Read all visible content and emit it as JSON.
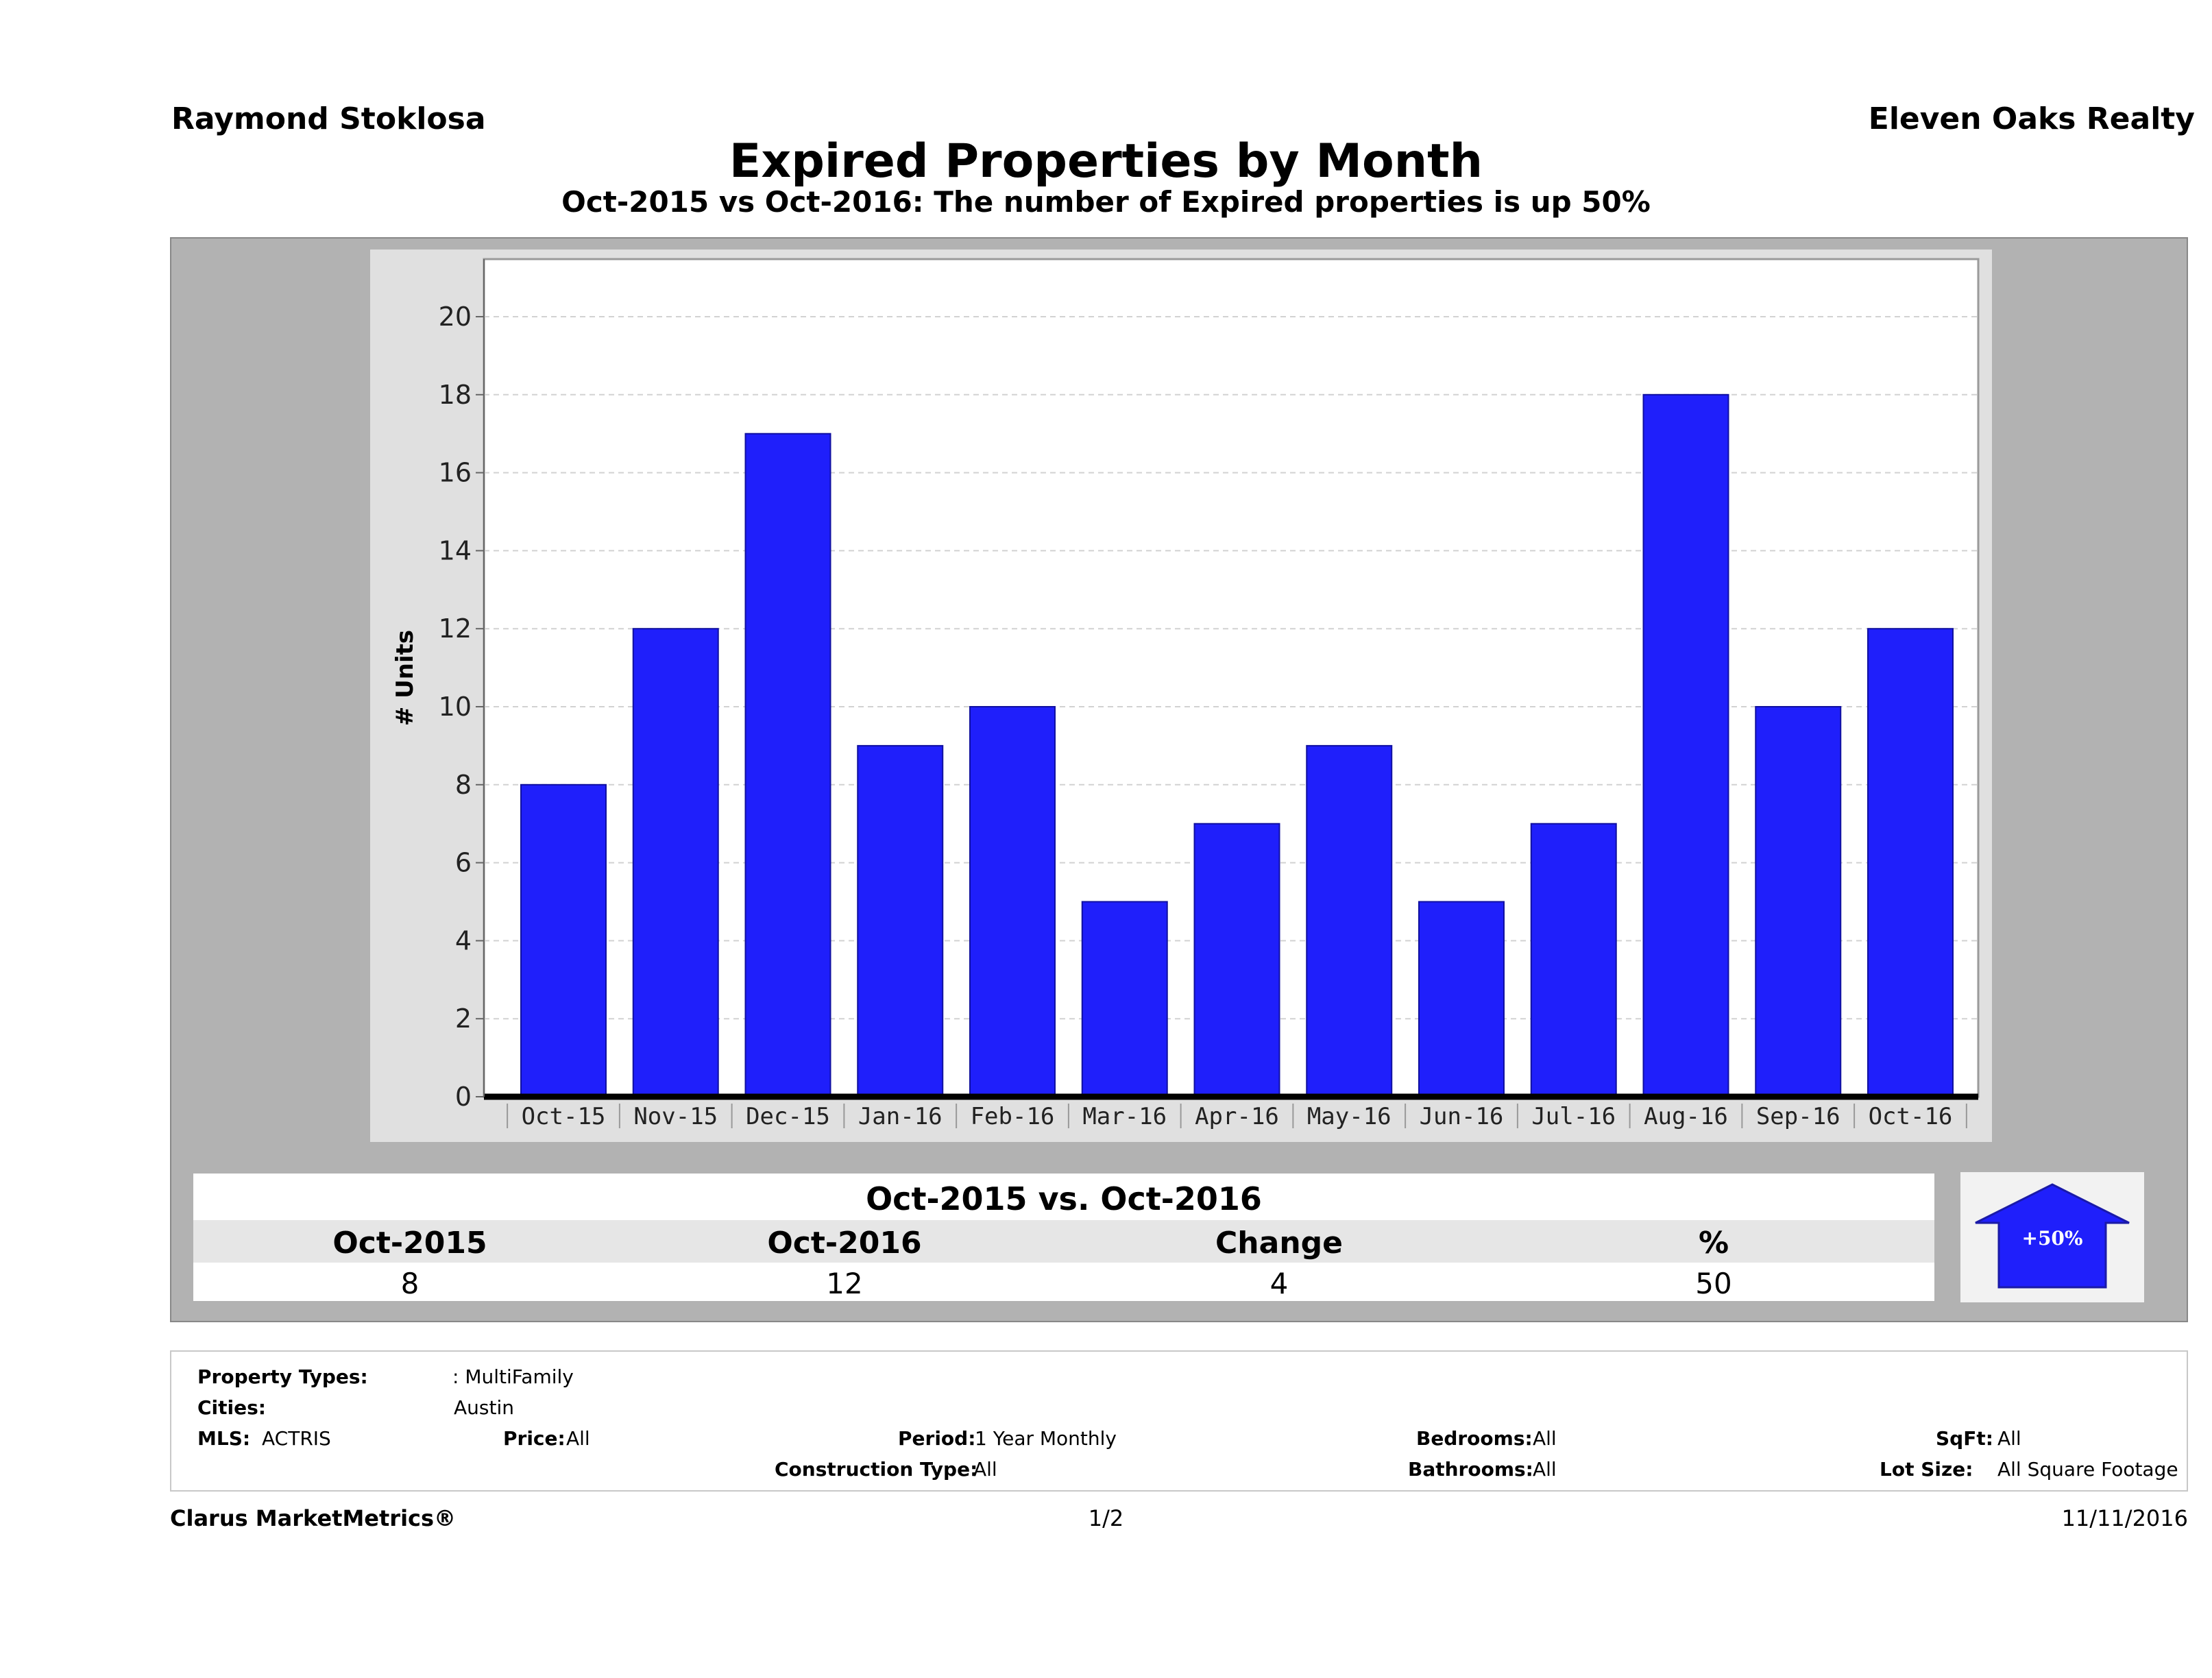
{
  "header": {
    "agent": "Raymond Stoklosa",
    "brokerage": "Eleven Oaks Realty",
    "title": "Expired Properties by Month",
    "subtitle": "Oct-2015 vs Oct-2016: The number of Expired  properties is up 50%"
  },
  "chart_data": {
    "type": "bar",
    "categories": [
      "Oct-15",
      "Nov-15",
      "Dec-15",
      "Jan-16",
      "Feb-16",
      "Mar-16",
      "Apr-16",
      "May-16",
      "Jun-16",
      "Jul-16",
      "Aug-16",
      "Sep-16",
      "Oct-16"
    ],
    "values": [
      8,
      12,
      17,
      9,
      10,
      5,
      7,
      9,
      5,
      7,
      18,
      10,
      12
    ],
    "ylabel": "# Units",
    "xlabel": "",
    "ylim": [
      0,
      21.5
    ],
    "yticks": [
      0,
      2,
      4,
      6,
      8,
      10,
      12,
      14,
      16,
      18,
      20
    ],
    "grid": true,
    "bar_color": "#1f1ffb"
  },
  "comparison": {
    "heading": "Oct-2015 vs. Oct-2016",
    "columns": [
      "Oct-2015",
      "Oct-2016",
      "Change",
      "%"
    ],
    "values": [
      "8",
      "12",
      "4",
      "50"
    ],
    "badge": "+50%",
    "badge_color": "#1f1ffb"
  },
  "filters": {
    "property_types_label": "Property Types:",
    "property_types_value": ": MultiFamily",
    "cities_label": "Cities:",
    "cities_value": "Austin",
    "mls_label": "MLS:",
    "mls_value": "ACTRIS",
    "price_label": "Price:",
    "price_value": "All",
    "period_label": "Period:",
    "period_value": "1 Year Monthly",
    "construction_label": "Construction Type:",
    "construction_value": "All",
    "bedrooms_label": "Bedrooms:",
    "bedrooms_value": "All",
    "bathrooms_label": "Bathrooms:",
    "bathrooms_value": "All",
    "sqft_label": "SqFt:",
    "sqft_value": "All",
    "lotsize_label": "Lot Size:",
    "lotsize_value": "All Square Footage"
  },
  "footer": {
    "brand": "Clarus MarketMetrics®",
    "page": "1/2",
    "date": "11/11/2016"
  }
}
